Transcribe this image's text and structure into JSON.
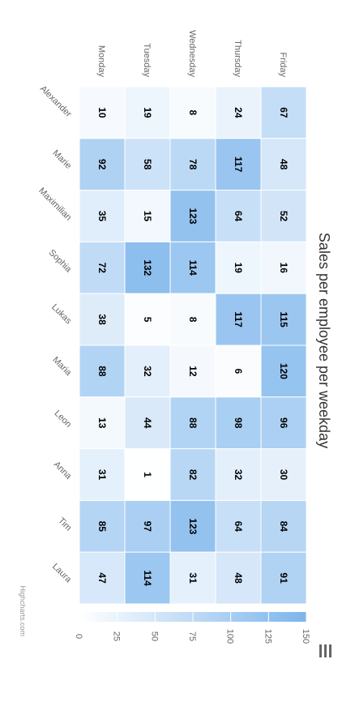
{
  "chart_data": {
    "type": "heatmap",
    "title": "Sales per employee per weekday",
    "x_categories": [
      "Alexander",
      "Marie",
      "Maximilian",
      "Sophia",
      "Lukas",
      "Maria",
      "Leon",
      "Anna",
      "Tim",
      "Laura"
    ],
    "y_categories": [
      "Monday",
      "Tuesday",
      "Wednesday",
      "Thursday",
      "Friday"
    ],
    "values": [
      [
        10,
        19,
        8,
        24,
        67
      ],
      [
        92,
        58,
        78,
        117,
        48
      ],
      [
        35,
        15,
        123,
        64,
        52
      ],
      [
        72,
        132,
        114,
        19,
        16
      ],
      [
        38,
        5,
        8,
        117,
        115
      ],
      [
        88,
        32,
        12,
        6,
        120
      ],
      [
        13,
        44,
        88,
        98,
        96
      ],
      [
        31,
        1,
        82,
        32,
        30
      ],
      [
        85,
        97,
        123,
        64,
        84
      ],
      [
        47,
        114,
        31,
        48,
        91
      ]
    ],
    "color_axis": {
      "min": 0,
      "max": 150,
      "ticks": [
        0,
        25,
        50,
        75,
        100,
        125,
        150
      ],
      "min_color": "#FFFFFF",
      "max_color": "#7CB5EC"
    },
    "cell_border_color": "#FFFFFF",
    "credits": "Highcharts.com"
  },
  "menu": {
    "icon": "hamburger-menu-icon"
  }
}
